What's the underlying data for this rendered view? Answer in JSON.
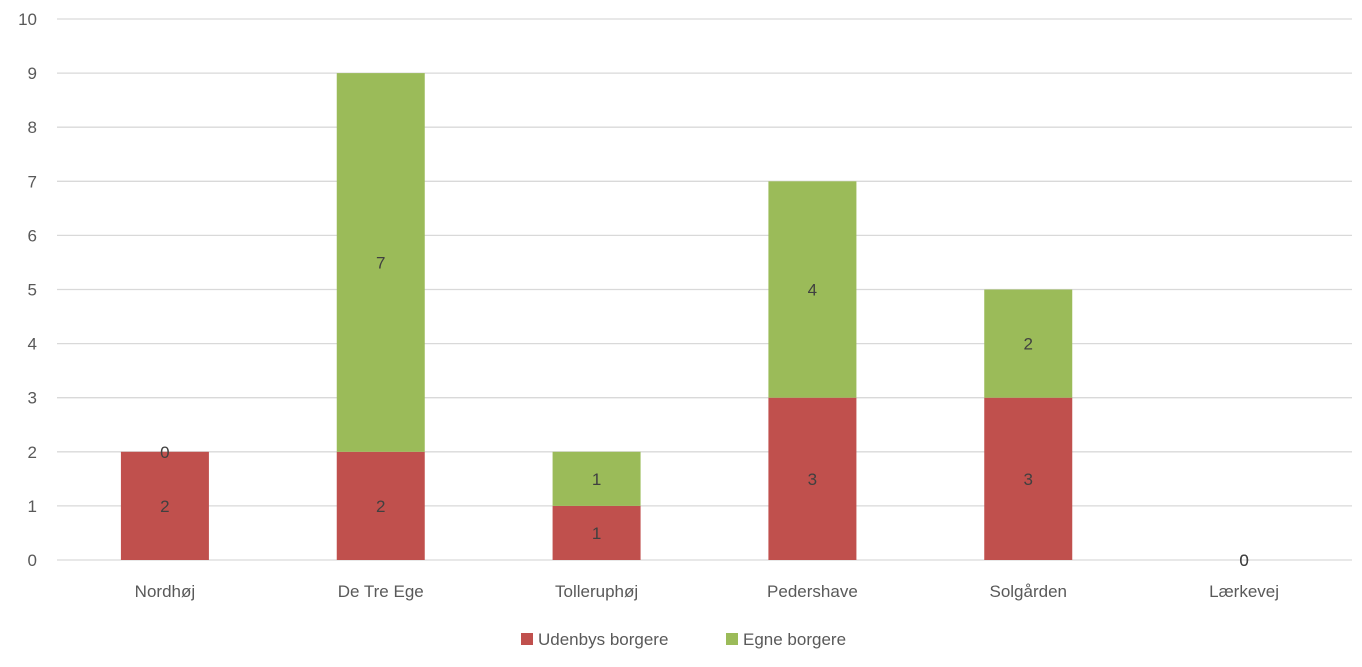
{
  "chart_data": {
    "type": "bar",
    "stacked": true,
    "categories": [
      "Nordhøj",
      "De Tre Ege",
      "Tolleruphøj",
      "Pedershave",
      "Solgården",
      "Lærkevej"
    ],
    "series": [
      {
        "name": "Udenbys borgere",
        "values": [
          2,
          2,
          1,
          3,
          3,
          0
        ],
        "color": "#c0504d"
      },
      {
        "name": "Egne borgere",
        "values": [
          0,
          7,
          1,
          4,
          2,
          0
        ],
        "color": "#9bbb59"
      }
    ],
    "ylim": [
      0,
      10
    ],
    "yticks": [
      0,
      1,
      2,
      3,
      4,
      5,
      6,
      7,
      8,
      9,
      10
    ],
    "grid": true,
    "legend_position": "bottom",
    "data_labels": true
  }
}
